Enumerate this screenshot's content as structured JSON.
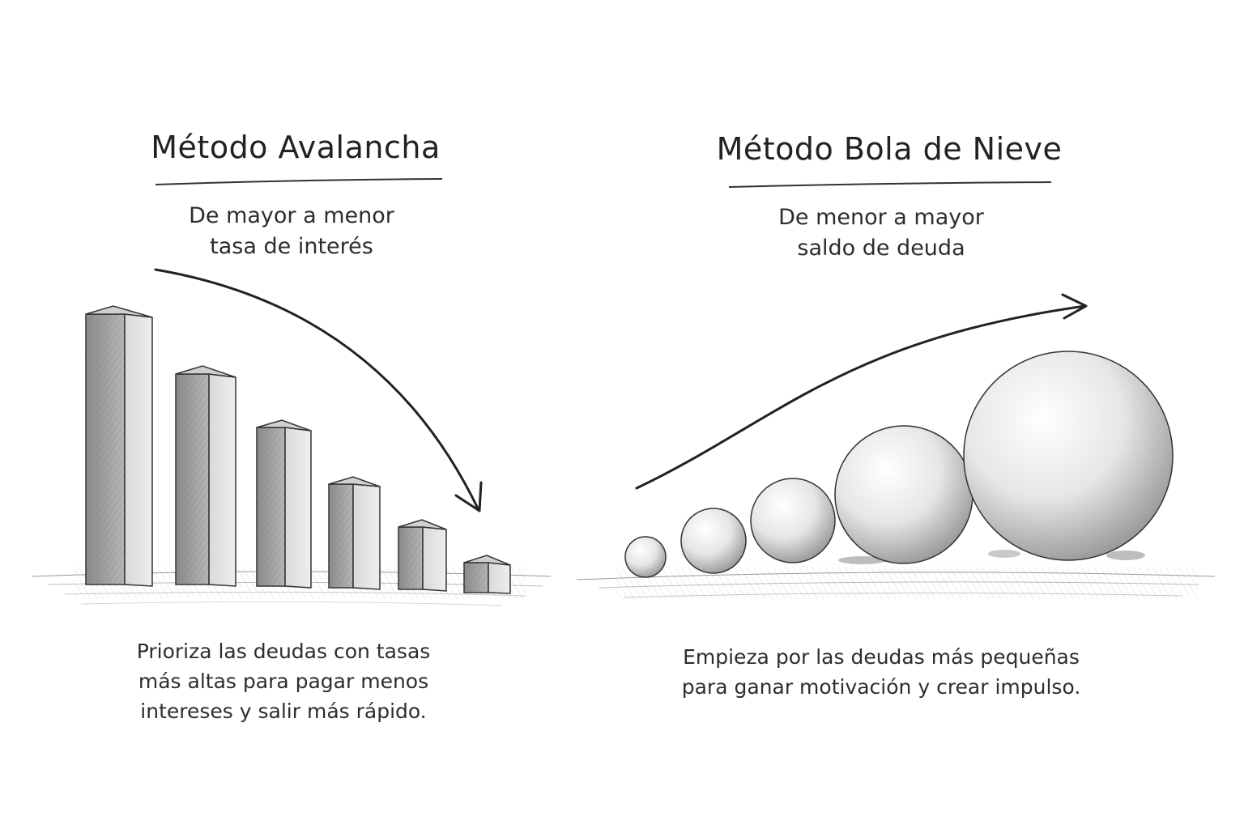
{
  "left": {
    "title": "Método Avalancha",
    "subtitle_lines": [
      "De mayor a menor",
      "tasa de interés"
    ],
    "description_lines": [
      "Prioriza las deudas con tasas",
      "más altas para pagar menos",
      "intereses y salir más rápido."
    ]
  },
  "right": {
    "title": "Método Bola de Nieve",
    "subtitle_lines": [
      "De menor a mayor",
      "saldo de deuda"
    ],
    "description_lines": [
      "Empieza por las deudas más pequeñas",
      "para ganar motivación y crear impulso."
    ]
  },
  "colors": {
    "ink": "#2a2a2a",
    "shade_dark": "#6e6e6e",
    "shade_mid": "#9a9a9a",
    "shade_light": "#d8d8d8",
    "background": "#ffffff"
  }
}
